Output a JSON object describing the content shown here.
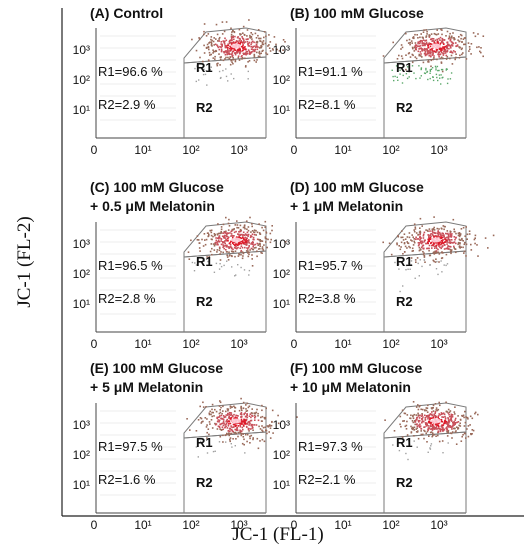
{
  "chart_data": {
    "type": "scatter",
    "xlabel": "JC-1 (FL-1)",
    "ylabel": "JC-1 (FL-2)",
    "x_ticks": [
      "0",
      "10¹",
      "10²",
      "10³"
    ],
    "y_ticks": [
      "10³",
      "10²",
      "10¹"
    ],
    "gate_names": [
      "R1",
      "R2"
    ],
    "panels": [
      {
        "title_lines": [
          "(A) Control"
        ],
        "r1_label": "R1=96.6 %",
        "r2_label": "R2=2.9 %",
        "r1": 96.6,
        "r2": 2.9
      },
      {
        "title_lines": [
          "(B) 100 mM Glucose"
        ],
        "r1_label": "R1=91.1 %",
        "r2_label": "R2=8.1 %",
        "r1": 91.1,
        "r2": 8.1
      },
      {
        "title_lines": [
          "(C) 100 mM Glucose",
          "+ 0.5 μM Melatonin"
        ],
        "r1_label": "R1=96.5 %",
        "r2_label": "R2=2.8 %",
        "r1": 96.5,
        "r2": 2.8
      },
      {
        "title_lines": [
          "(D) 100 mM Glucose",
          "+ 1 μM Melatonin"
        ],
        "r1_label": "R1=95.7 %",
        "r2_label": "R2=3.8 %",
        "r1": 95.7,
        "r2": 3.8
      },
      {
        "title_lines": [
          "(E) 100 mM Glucose",
          "+ 5 μM Melatonin"
        ],
        "r1_label": "R1=97.5 %",
        "r2_label": "R2=1.6 %",
        "r1": 97.5,
        "r2": 1.6
      },
      {
        "title_lines": [
          "(F) 100 mM Glucose",
          "+ 10 μM Melatonin"
        ],
        "r1_label": "R1=97.3 %",
        "r2_label": "R2=2.1 %",
        "r1": 97.3,
        "r2": 2.1
      }
    ]
  }
}
